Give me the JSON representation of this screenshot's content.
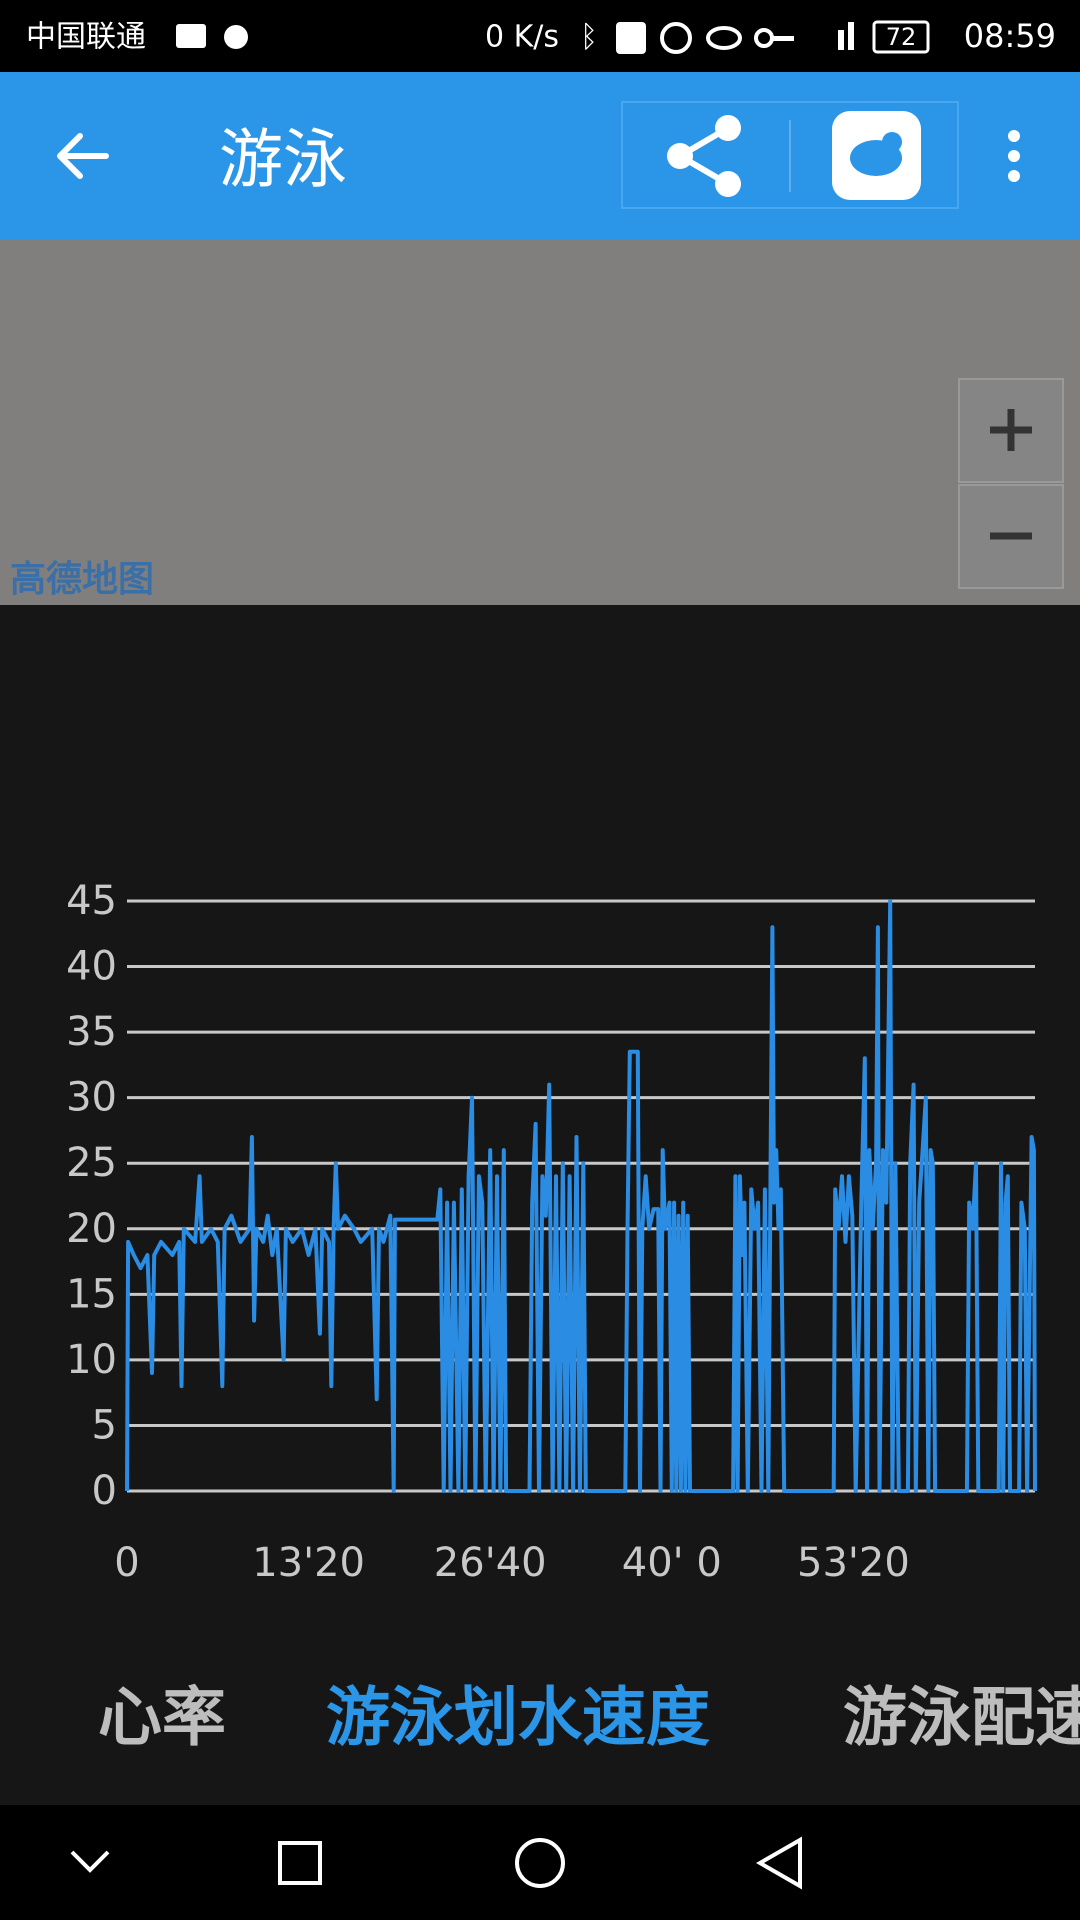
{
  "status_bar": {
    "carrier": "中国联通",
    "speed": "0 K/s",
    "battery": "72",
    "time": "08:59"
  },
  "app_bar": {
    "title": "游泳"
  },
  "map": {
    "attribution": "高德地图"
  },
  "chart_data": {
    "type": "line",
    "xlim": [
      0,
      4000
    ],
    "xticks": [
      0,
      {
        "value": 800,
        "label": "13'20"
      },
      {
        "value": 1600,
        "label": "26'40"
      },
      {
        "value": 2400,
        "label": "40' 0"
      },
      {
        "value": 3200,
        "label": "53'20"
      }
    ],
    "ylim": [
      0,
      45
    ],
    "yticks": [
      0,
      5,
      10,
      15,
      20,
      25,
      30,
      35,
      40,
      45
    ],
    "grid": true,
    "series": [
      {
        "color": "#2a8ce2",
        "x": [
          0,
          5,
          30,
          60,
          90,
          110,
          120,
          150,
          200,
          230,
          240,
          250,
          300,
          320,
          330,
          370,
          400,
          420,
          430,
          460,
          500,
          540,
          550,
          560,
          570,
          600,
          620,
          640,
          660,
          690,
          700,
          730,
          770,
          800,
          830,
          850,
          860,
          890,
          900,
          910,
          920,
          930,
          960,
          1000,
          1030,
          1080,
          1100,
          1110,
          1130,
          1160,
          1175,
          1180,
          1367,
          1380,
          1395,
          1410,
          1425,
          1440,
          1460,
          1475,
          1490,
          1505,
          1520,
          1535,
          1550,
          1565,
          1580,
          1600,
          1615,
          1630,
          1645,
          1660,
          1670,
          1773,
          1785,
          1800,
          1815,
          1830,
          1845,
          1860,
          1875,
          1890,
          1905,
          1920,
          1935,
          1950,
          1965,
          1980,
          1995,
          2010,
          2021,
          2195,
          2205,
          2215,
          2250,
          2260,
          2270,
          2285,
          2300,
          2320,
          2340,
          2350,
          2360,
          2370,
          2390,
          2400,
          2410,
          2420,
          2430,
          2440,
          2450,
          2460,
          2470,
          2480,
          2670,
          2680,
          2690,
          2700,
          2710,
          2720,
          2735,
          2750,
          2765,
          2780,
          2795,
          2810,
          2825,
          2835,
          2843,
          2850,
          2860,
          2870,
          2880,
          2895,
          3113,
          3120,
          3135,
          3150,
          3165,
          3180,
          3195,
          3210,
          3235,
          3250,
          3260,
          3270,
          3285,
          3300,
          3308,
          3315,
          3330,
          3345,
          3362,
          3372,
          3385,
          3400,
          3440,
          3450,
          3465,
          3475,
          3490,
          3505,
          3519,
          3530,
          3540,
          3550,
          3560,
          3700,
          3710,
          3725,
          3740,
          3750,
          3840,
          3850,
          3860,
          3870,
          3880,
          3890,
          3930,
          3940,
          3955,
          3965,
          3985,
          3995,
          4000
        ],
        "values": [
          0,
          19,
          18,
          17,
          18,
          9,
          18,
          19,
          18,
          19,
          8,
          20,
          19,
          24,
          19,
          20,
          19,
          8,
          20,
          21,
          19,
          20,
          27,
          13,
          20,
          19,
          21,
          18,
          20,
          10,
          20,
          19,
          20,
          18,
          20,
          12,
          20,
          19,
          8,
          20,
          25,
          20,
          21,
          20,
          19,
          20,
          7,
          20,
          19,
          21,
          0,
          20.7,
          20.7,
          23,
          0,
          22,
          0,
          22,
          0,
          23,
          0,
          24,
          30,
          0,
          24,
          22,
          0,
          26,
          0,
          24,
          0,
          26,
          0,
          0,
          22,
          28,
          0,
          24,
          21,
          31,
          0,
          24,
          0,
          25,
          0,
          24,
          0,
          27,
          0,
          25,
          0,
          0,
          20,
          33.5,
          33.5,
          0,
          20,
          24,
          20,
          21.5,
          21.5,
          0,
          26,
          20,
          22,
          0,
          22,
          0,
          21,
          0,
          22,
          0,
          21,
          0,
          0,
          24,
          0,
          24,
          18,
          22,
          0,
          23,
          20,
          22,
          0,
          23,
          0,
          24,
          43,
          22,
          26,
          20,
          23,
          0,
          0,
          23,
          20,
          24,
          19,
          24,
          21,
          0,
          22,
          33,
          0,
          26,
          20,
          25,
          43,
          0,
          26,
          22,
          45,
          0,
          25,
          0,
          0,
          25,
          31,
          0,
          22,
          26,
          30,
          0,
          26,
          25,
          0,
          0,
          22,
          20,
          25,
          0,
          0,
          25,
          0,
          22,
          24,
          0,
          0,
          22,
          20,
          0,
          27,
          26,
          0
        ]
      }
    ]
  },
  "tabs": [
    "心率",
    "游泳划水速度",
    "游泳配速"
  ]
}
